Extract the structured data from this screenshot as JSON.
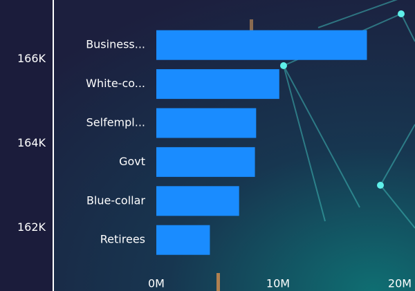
{
  "chart_data": [
    {
      "type": "axis",
      "ylim": [
        160500,
        167400
      ],
      "yticks": [
        {
          "value": 162000,
          "label": "162K"
        },
        {
          "value": 164000,
          "label": "164K"
        },
        {
          "value": 166000,
          "label": "166K"
        }
      ]
    },
    {
      "type": "hbar",
      "categories": [
        "Business...",
        "White-co...",
        "Selfempl...",
        "Govt",
        "Blue-collar",
        "Retirees"
      ],
      "values": [
        17300000,
        10100000,
        8200000,
        8100000,
        6800000,
        4400000
      ],
      "color": "#1a8cff",
      "xlim": [
        0,
        20000000
      ],
      "xticks": [
        {
          "value": 0,
          "label": "0M"
        },
        {
          "value": 10000000,
          "label": "10M"
        },
        {
          "value": 20000000,
          "label": "20M"
        }
      ]
    }
  ]
}
